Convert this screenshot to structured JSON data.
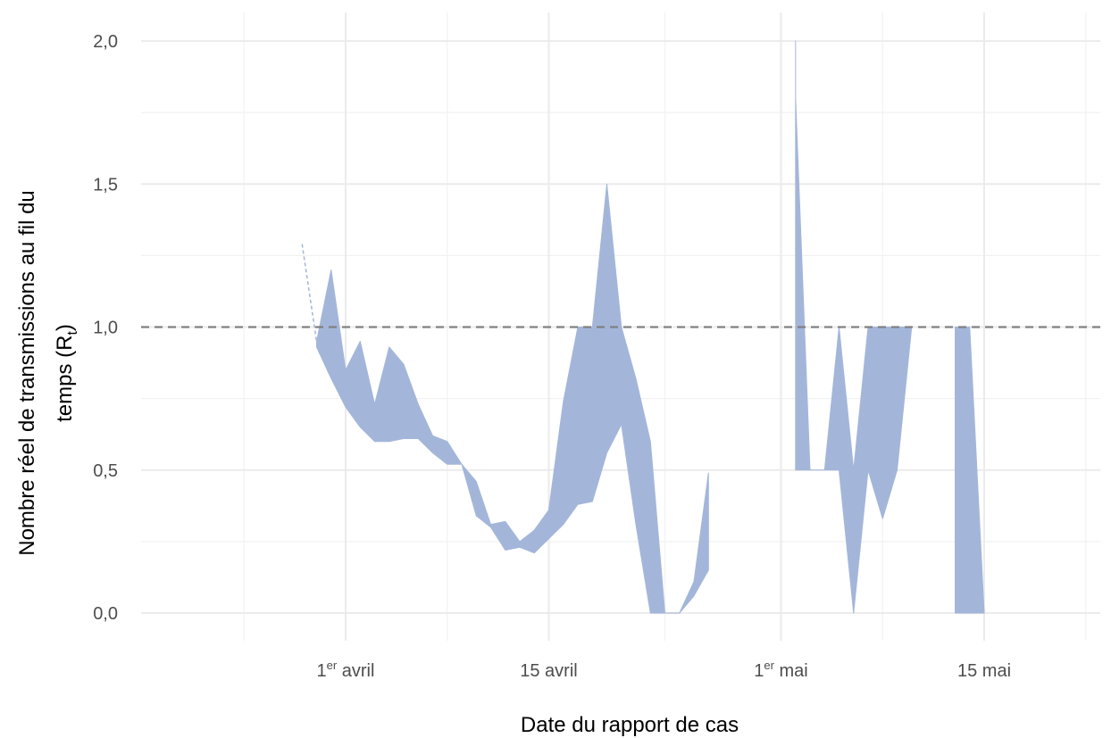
{
  "chart_data": {
    "type": "area",
    "title": "",
    "xlabel": "Date du rapport de cas",
    "ylabel_line1": "Nombre réel de transmissions au fil du",
    "ylabel_line2_prefix": "temps (R",
    "ylabel_line2_sub": "t",
    "ylabel_line2_suffix": ")",
    "xlim": [
      "2020-03-18",
      "2020-05-24"
    ],
    "ylim": [
      0,
      2.0
    ],
    "grid": true,
    "legend": "none",
    "band_color": "#a3b6da",
    "reference_line": {
      "y": 1.0,
      "style": "dashed",
      "color": "#808080"
    },
    "y_ticks": [
      {
        "value": 0.0,
        "label": "0,0"
      },
      {
        "value": 0.5,
        "label": "0,5"
      },
      {
        "value": 1.0,
        "label": "1,0"
      },
      {
        "value": 1.5,
        "label": "1,5"
      },
      {
        "value": 2.0,
        "label": "2,0"
      }
    ],
    "x_ticks": [
      {
        "date": "2020-04-01",
        "label": "1",
        "sup": "er",
        "rest": " avril"
      },
      {
        "date": "2020-04-15",
        "label": "15 avril",
        "sup": "",
        "rest": ""
      },
      {
        "date": "2020-05-01",
        "label": "1",
        "sup": "er",
        "rest": " mai"
      },
      {
        "date": "2020-05-15",
        "label": "15 mai",
        "sup": "",
        "rest": ""
      }
    ],
    "series": [
      {
        "x": [
          "2020-03-30",
          "2020-03-31",
          "2020-04-01",
          "2020-04-02",
          "2020-04-03",
          "2020-04-04",
          "2020-04-05",
          "2020-04-06",
          "2020-04-07",
          "2020-04-08",
          "2020-04-09",
          "2020-04-10",
          "2020-04-11",
          "2020-04-12",
          "2020-04-13",
          "2020-04-14",
          "2020-04-15",
          "2020-04-16",
          "2020-04-17",
          "2020-04-18",
          "2020-04-19",
          "2020-04-20",
          "2020-04-21",
          "2020-04-22",
          "2020-04-23",
          "2020-04-24",
          "2020-04-25",
          "2020-04-26"
        ],
        "lower": [
          0.93,
          0.82,
          0.72,
          0.65,
          0.6,
          0.6,
          0.61,
          0.61,
          0.56,
          0.52,
          0.52,
          0.34,
          0.3,
          0.22,
          0.23,
          0.21,
          0.26,
          0.31,
          0.38,
          0.39,
          0.56,
          0.66,
          0.31,
          0.0,
          0.0,
          0.0,
          0.06,
          0.15
        ],
        "upper": [
          0.95,
          1.2,
          0.85,
          0.95,
          0.73,
          0.93,
          0.87,
          0.73,
          0.62,
          0.6,
          0.52,
          0.46,
          0.31,
          0.32,
          0.25,
          0.29,
          0.36,
          0.74,
          1.0,
          1.0,
          1.5,
          1.0,
          0.82,
          0.6,
          0.0,
          0.0,
          0.11,
          0.49
        ]
      },
      {
        "x": [
          "2020-05-02",
          "2020-05-02",
          "2020-05-03",
          "2020-05-03",
          "2020-05-04",
          "2020-05-05",
          "2020-05-06",
          "2020-05-07",
          "2020-05-08",
          "2020-05-09",
          "2020-05-10"
        ],
        "lower": [
          0.5,
          0.5,
          0.5,
          0.5,
          0.5,
          0.5,
          0.0,
          0.5,
          0.33,
          0.5,
          1.0
        ],
        "upper": [
          2.0,
          1.8,
          0.5,
          0.5,
          0.5,
          1.0,
          0.5,
          1.0,
          1.0,
          1.0,
          1.0
        ]
      },
      {
        "x": [
          "2020-05-13",
          "2020-05-14",
          "2020-05-15"
        ],
        "lower": [
          0.0,
          0.0,
          0.0
        ],
        "upper": [
          1.0,
          1.0,
          0.0
        ]
      }
    ],
    "thin_line": {
      "x": [
        "2020-03-29",
        "2020-03-30"
      ],
      "y": [
        1.29,
        0.95
      ]
    }
  }
}
